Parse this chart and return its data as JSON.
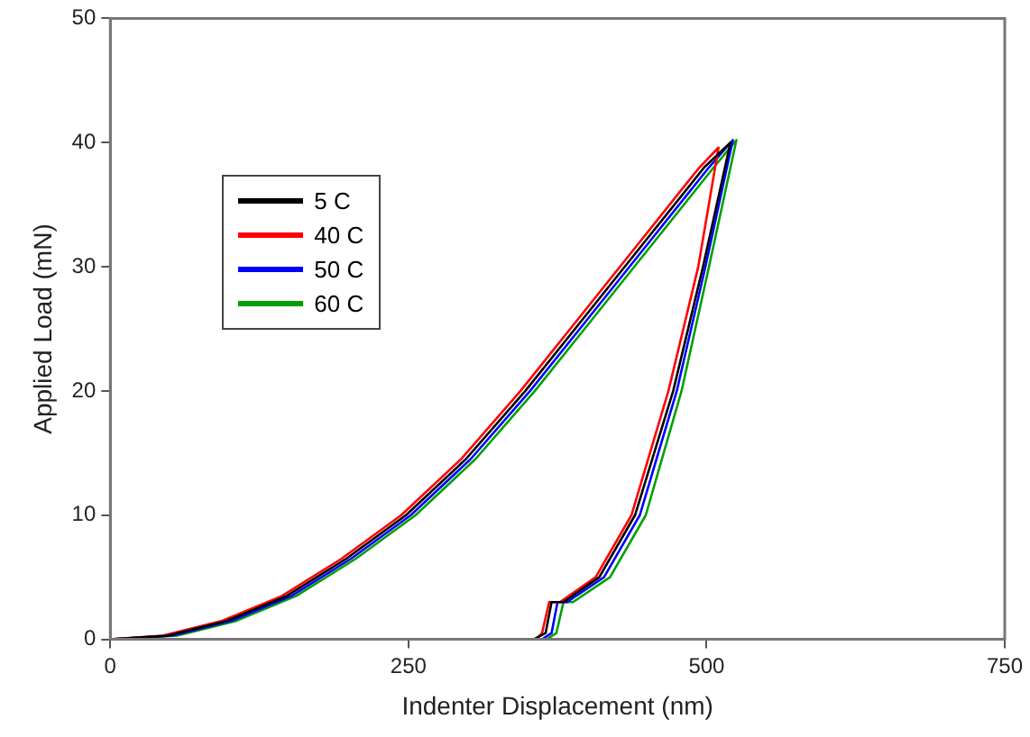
{
  "chart_data": {
    "type": "line",
    "xlabel": "Indenter Displacement (nm)",
    "ylabel": "Applied Load (mN)",
    "xlim": [
      0,
      750
    ],
    "ylim": [
      0,
      50
    ],
    "xticks": [
      0,
      250,
      500,
      750
    ],
    "yticks": [
      0,
      10,
      20,
      30,
      40,
      50
    ],
    "grid": false,
    "legend": "top left",
    "marker": "none",
    "line_style": "solid",
    "series": [
      {
        "name": "5 C",
        "color": "#000000",
        "x": [
          0,
          48,
          98,
          148,
          198,
          248,
          298,
          348,
          398,
          448,
          498,
          520,
          497,
          472,
          440,
          410,
          380,
          370,
          365,
          355
        ],
        "values": [
          0,
          0.3,
          1.5,
          3.5,
          6.5,
          10,
          14.5,
          20,
          26,
          32,
          38,
          40,
          30,
          20,
          10,
          5,
          3,
          3,
          0.5,
          0
        ]
      },
      {
        "name": "40 C",
        "color": "#ff0000",
        "x": [
          0,
          44,
          94,
          144,
          194,
          244,
          294,
          344,
          394,
          444,
          494,
          510,
          493,
          468,
          437,
          407,
          377,
          368,
          362,
          357
        ],
        "values": [
          0,
          0.3,
          1.5,
          3.5,
          6.5,
          10,
          14.5,
          20,
          26,
          32,
          38,
          39.6,
          30,
          20,
          10,
          5,
          3,
          3,
          0.5,
          0
        ]
      },
      {
        "name": "50 C",
        "color": "#0000ff",
        "x": [
          0,
          52,
          102,
          152,
          202,
          252,
          302,
          352,
          402,
          452,
          502,
          522,
          499,
          475,
          444,
          414,
          383,
          375,
          370,
          362
        ],
        "values": [
          0,
          0.3,
          1.5,
          3.5,
          6.5,
          10,
          14.5,
          20,
          26,
          32,
          38,
          40.2,
          30,
          20,
          10,
          5,
          3,
          3,
          0.5,
          0
        ]
      },
      {
        "name": "60 C",
        "color": "#00a000",
        "x": [
          0,
          56,
          106,
          156,
          206,
          256,
          306,
          356,
          406,
          456,
          506,
          525,
          502,
          479,
          449,
          419,
          388,
          380,
          374,
          366
        ],
        "values": [
          0,
          0.3,
          1.5,
          3.5,
          6.5,
          10,
          14.5,
          20,
          26,
          32,
          38,
          40.2,
          30,
          20,
          10,
          5,
          3,
          3,
          0.5,
          0
        ]
      }
    ]
  }
}
